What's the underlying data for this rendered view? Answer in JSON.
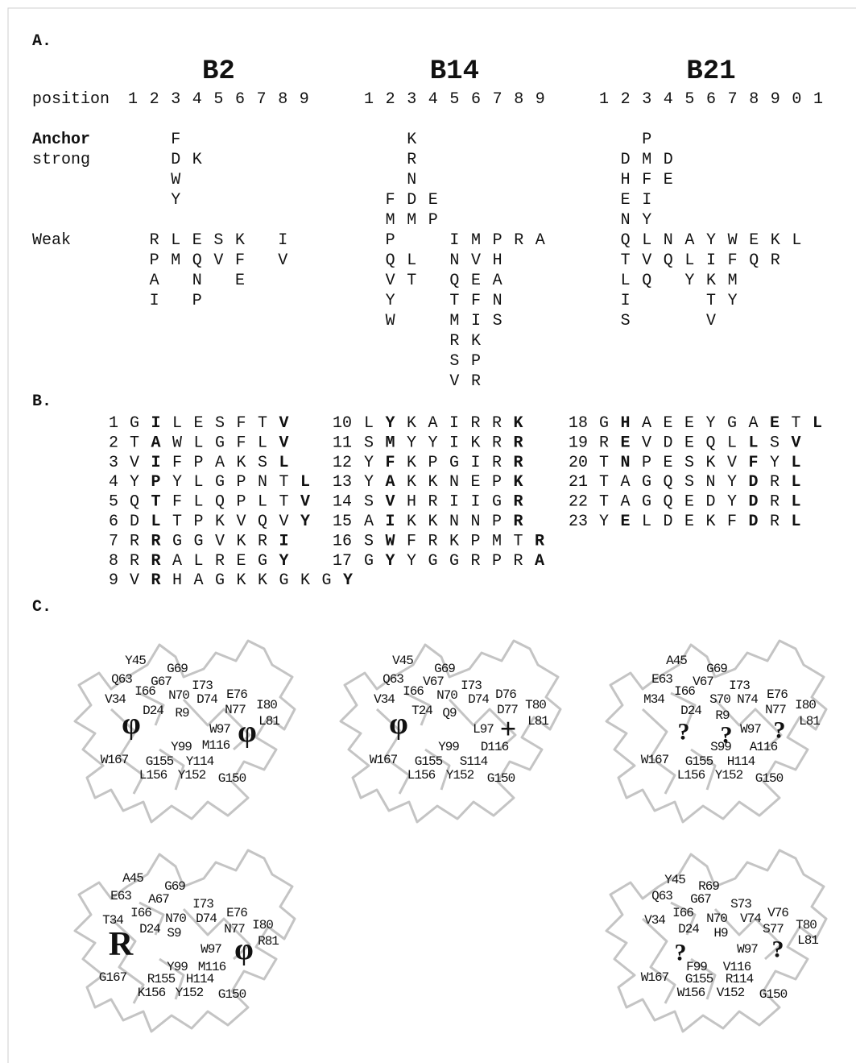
{
  "section_a": {
    "label": "A.",
    "position_label": "position",
    "anchor_label": "Anchor",
    "strong_label": "strong",
    "weak_label": "Weak",
    "alleles": [
      {
        "name": "B2",
        "positions": [
          1,
          2,
          3,
          4,
          5,
          6,
          7,
          8,
          9
        ],
        "strong": [
          [
            null,
            null,
            "F",
            null,
            null,
            null,
            null,
            null,
            null
          ],
          [
            null,
            null,
            "D",
            "K",
            null,
            null,
            null,
            null,
            null
          ],
          [
            null,
            null,
            "W",
            null,
            null,
            null,
            null,
            null,
            null
          ],
          [
            null,
            null,
            "Y",
            null,
            null,
            null,
            null,
            null,
            null
          ]
        ],
        "weak": [
          [
            null,
            "R",
            "L",
            "E",
            "S",
            "K",
            null,
            "I",
            null
          ],
          [
            null,
            "P",
            "M",
            "Q",
            "V",
            "F",
            null,
            "V",
            null
          ],
          [
            null,
            "A",
            null,
            "N",
            null,
            "E",
            null,
            null,
            null
          ],
          [
            null,
            "I",
            null,
            "P",
            null,
            null,
            null,
            null,
            null
          ]
        ]
      },
      {
        "name": "B14",
        "positions": [
          1,
          2,
          3,
          4,
          5,
          6,
          7,
          8,
          9
        ],
        "strong": [
          [
            null,
            null,
            "K",
            null,
            null,
            null,
            null,
            null,
            null
          ],
          [
            null,
            null,
            "R",
            null,
            null,
            null,
            null,
            null,
            null
          ],
          [
            null,
            null,
            "N",
            null,
            null,
            null,
            null,
            null,
            null
          ],
          [
            null,
            "F",
            "D",
            "E",
            null,
            null,
            null,
            null,
            null
          ],
          [
            null,
            "M",
            "M",
            "P",
            null,
            null,
            null,
            null,
            null
          ]
        ],
        "weak": [
          [
            null,
            "P",
            null,
            null,
            "I",
            "M",
            "P",
            "R",
            "A"
          ],
          [
            null,
            "Q",
            "L",
            null,
            "N",
            "V",
            "H",
            null,
            null
          ],
          [
            null,
            "V",
            "T",
            null,
            "Q",
            "E",
            "A",
            null,
            null
          ],
          [
            null,
            "Y",
            null,
            null,
            "T",
            "F",
            "N",
            null,
            null
          ],
          [
            null,
            "W",
            null,
            null,
            "M",
            "I",
            "S",
            null,
            null
          ],
          [
            null,
            null,
            null,
            null,
            "R",
            "K",
            null,
            null,
            null
          ],
          [
            null,
            null,
            null,
            null,
            "S",
            "P",
            null,
            null,
            null
          ],
          [
            null,
            null,
            null,
            null,
            "V",
            "R",
            null,
            null,
            null
          ]
        ]
      },
      {
        "name": "B21",
        "positions": [
          1,
          2,
          3,
          4,
          5,
          6,
          7,
          8,
          9,
          0,
          1
        ],
        "strong": [
          [
            null,
            null,
            "P",
            null,
            null,
            null,
            null,
            null,
            null,
            null,
            null
          ],
          [
            null,
            "D",
            "M",
            "D",
            null,
            null,
            null,
            null,
            null,
            null,
            null
          ],
          [
            null,
            "H",
            "F",
            "E",
            null,
            null,
            null,
            null,
            null,
            null,
            null
          ],
          [
            null,
            "E",
            "I",
            null,
            null,
            null,
            null,
            null,
            null,
            null,
            null
          ],
          [
            null,
            "N",
            "Y",
            null,
            null,
            null,
            null,
            null,
            null,
            null,
            null
          ]
        ],
        "weak": [
          [
            null,
            "Q",
            "L",
            "N",
            "A",
            "Y",
            "W",
            "E",
            "K",
            "L",
            null
          ],
          [
            null,
            "T",
            "V",
            "Q",
            "L",
            "I",
            "F",
            "Q",
            "R",
            null,
            null
          ],
          [
            null,
            "L",
            "Q",
            null,
            "Y",
            "K",
            "M",
            null,
            null,
            null,
            null
          ],
          [
            null,
            "I",
            null,
            null,
            null,
            "T",
            "Y",
            null,
            null,
            null,
            null
          ],
          [
            null,
            "S",
            null,
            null,
            null,
            "V",
            null,
            null,
            null,
            null,
            null
          ]
        ]
      }
    ]
  },
  "section_b": {
    "label": "B.",
    "columns": [
      [
        {
          "number": 1,
          "residues": [
            "G",
            "I",
            "L",
            "E",
            "S",
            "F",
            "T",
            "V"
          ],
          "bold": [
            1,
            7
          ]
        },
        {
          "number": 2,
          "residues": [
            "T",
            "A",
            "W",
            "L",
            "G",
            "F",
            "L",
            "V"
          ],
          "bold": [
            1,
            7
          ]
        },
        {
          "number": 3,
          "residues": [
            "V",
            "I",
            "F",
            "P",
            "A",
            "K",
            "S",
            "L"
          ],
          "bold": [
            1,
            7
          ]
        },
        {
          "number": 4,
          "residues": [
            "Y",
            "P",
            "Y",
            "L",
            "G",
            "P",
            "N",
            "T",
            "L"
          ],
          "bold": [
            1,
            8
          ]
        },
        {
          "number": 5,
          "residues": [
            "Q",
            "T",
            "F",
            "L",
            "Q",
            "P",
            "L",
            "T",
            "V"
          ],
          "bold": [
            1,
            8
          ]
        },
        {
          "number": 6,
          "residues": [
            "D",
            "L",
            "T",
            "P",
            "K",
            "V",
            "Q",
            "V",
            "Y"
          ],
          "bold": [
            1,
            8
          ]
        },
        {
          "number": 7,
          "residues": [
            "R",
            "R",
            "G",
            "G",
            "V",
            "K",
            "R",
            "I"
          ],
          "bold": [
            1,
            7
          ]
        },
        {
          "number": 8,
          "residues": [
            "R",
            "R",
            "A",
            "L",
            "R",
            "E",
            "G",
            "Y"
          ],
          "bold": [
            1,
            7
          ]
        },
        {
          "number": 9,
          "residues": [
            "V",
            "R",
            "H",
            "A",
            "G",
            "K",
            "K",
            "G",
            "K",
            "G",
            "Y"
          ],
          "bold": [
            1,
            10
          ]
        }
      ],
      [
        {
          "number": 10,
          "residues": [
            "L",
            "Y",
            "K",
            "A",
            "I",
            "R",
            "R",
            "K"
          ],
          "bold": [
            1,
            7
          ]
        },
        {
          "number": 11,
          "residues": [
            "S",
            "M",
            "Y",
            "Y",
            "I",
            "K",
            "R",
            "R"
          ],
          "bold": [
            1,
            7
          ]
        },
        {
          "number": 12,
          "residues": [
            "Y",
            "F",
            "K",
            "P",
            "G",
            "I",
            "R",
            "R"
          ],
          "bold": [
            1,
            7
          ]
        },
        {
          "number": 13,
          "residues": [
            "Y",
            "A",
            "K",
            "K",
            "N",
            "E",
            "P",
            "K"
          ],
          "bold": [
            1,
            7
          ]
        },
        {
          "number": 14,
          "residues": [
            "S",
            "V",
            "H",
            "R",
            "I",
            "I",
            "G",
            "R"
          ],
          "bold": [
            1,
            7
          ]
        },
        {
          "number": 15,
          "residues": [
            "A",
            "I",
            "K",
            "K",
            "N",
            "N",
            "P",
            "R"
          ],
          "bold": [
            1,
            7
          ]
        },
        {
          "number": 16,
          "residues": [
            "S",
            "W",
            "F",
            "R",
            "K",
            "P",
            "M",
            "T",
            "R"
          ],
          "bold": [
            1,
            8
          ]
        },
        {
          "number": 17,
          "residues": [
            "G",
            "Y",
            "Y",
            "G",
            "G",
            "R",
            "P",
            "R",
            "A"
          ],
          "bold": [
            1,
            8
          ]
        }
      ],
      [
        {
          "number": 18,
          "residues": [
            "G",
            "H",
            "A",
            "E",
            "E",
            "Y",
            "G",
            "A",
            "E",
            "T",
            "L"
          ],
          "bold": [
            1,
            8,
            10
          ]
        },
        {
          "number": 19,
          "residues": [
            "R",
            "E",
            "V",
            "D",
            "E",
            "Q",
            "L",
            "L",
            "S",
            "V"
          ],
          "bold": [
            1,
            7,
            9
          ]
        },
        {
          "number": 20,
          "residues": [
            "T",
            "N",
            "P",
            "E",
            "S",
            "K",
            "V",
            "F",
            "Y",
            "L"
          ],
          "bold": [
            1,
            7,
            9
          ]
        },
        {
          "number": 21,
          "residues": [
            "T",
            "A",
            "G",
            "Q",
            "S",
            "N",
            "Y",
            "D",
            "R",
            "L"
          ],
          "bold": [
            7,
            9
          ]
        },
        {
          "number": 22,
          "residues": [
            "T",
            "A",
            "G",
            "Q",
            "E",
            "D",
            "Y",
            "D",
            "R",
            "L"
          ],
          "bold": [
            7,
            9
          ]
        },
        {
          "number": 23,
          "residues": [
            "Y",
            "E",
            "L",
            "D",
            "E",
            "K",
            "F",
            "D",
            "R",
            "L"
          ],
          "bold": [
            1,
            7,
            9
          ]
        }
      ]
    ]
  },
  "section_c": {
    "label": "C.",
    "panels": [
      {
        "labels": [
          "Y45",
          "G69",
          "Q63",
          "G67",
          "I66",
          "N70",
          "I73",
          "D74",
          "E76",
          "V34",
          "D24",
          "R9",
          "N77",
          "I80",
          "L81",
          "W97",
          "Y99",
          "M116",
          "W167",
          "G155",
          "Y114",
          "L156",
          "Y152",
          "G150"
        ],
        "symbols": [
          {
            "text": "φ",
            "color": "#000000"
          },
          {
            "text": "φ",
            "color": "#000000"
          }
        ]
      },
      {
        "labels": [
          "V45",
          "G69",
          "Q63",
          "V67",
          "I73",
          "I66",
          "N70",
          "D76",
          "D74",
          "V34",
          "T24",
          "Q9",
          "D77",
          "T80",
          "L81",
          "L97",
          "Y99",
          "D116",
          "W167",
          "G155",
          "S114",
          "L156",
          "Y152",
          "G150"
        ],
        "symbols": [
          {
            "text": "φ",
            "color": "#000000"
          },
          {
            "text": "+",
            "color": "#2626e0"
          }
        ]
      },
      {
        "labels": [
          "A45",
          "G69",
          "E63",
          "V67",
          "I73",
          "I66",
          "S70",
          "N74",
          "E76",
          "M34",
          "D24",
          "R9",
          "N77",
          "I80",
          "L81",
          "W97",
          "S99",
          "A116",
          "W167",
          "G155",
          "H114",
          "L156",
          "Y152",
          "G150"
        ],
        "symbols": [
          {
            "text": "?",
            "color": "#000000"
          },
          {
            "text": "?",
            "color": "#000000"
          },
          {
            "text": "?",
            "color": "#000000"
          }
        ]
      },
      {
        "labels": [
          "A45",
          "G69",
          "E63",
          "A67",
          "I73",
          "I66",
          "N70",
          "D74",
          "E76",
          "T34",
          "D24",
          "S9",
          "N77",
          "I80",
          "R81",
          "W97",
          "Y99",
          "M116",
          "G167",
          "R155",
          "H114",
          "K156",
          "Y152",
          "G150"
        ],
        "symbols": [
          {
            "text": "R",
            "color": "#2626e0"
          },
          {
            "text": "φ",
            "color": "#000000"
          }
        ]
      },
      {
        "labels": [
          "Y45",
          "R69",
          "Q63",
          "G67",
          "S73",
          "I66",
          "V76",
          "N70",
          "V74",
          "T80",
          "V34",
          "D24",
          "S77",
          "H9",
          "L81",
          "W97",
          "F99",
          "V116",
          "W167",
          "G155",
          "R114",
          "W156",
          "V152",
          "G150"
        ],
        "symbols": [
          {
            "text": "?",
            "color": "#000000"
          },
          {
            "text": "?",
            "color": "#000000"
          }
        ]
      }
    ]
  },
  "colors": {
    "D": "#e3372e",
    "E": "#e3372e",
    "K": "#2e7fbf",
    "R": "#2e7fbf",
    "H": "#2e7fbf",
    "N": "#20a871",
    "Q": "#20a871",
    "S": "#20a871",
    "T": "#20a871"
  },
  "structure_colors": {
    "D": "#e3372e",
    "E": "#e3372e",
    "K": "#3838e0",
    "R": "#3838e0",
    "H": "#3838e0",
    "N": "#20a871",
    "Q": "#20a871",
    "S": "#20a871",
    "T": "#20a871"
  }
}
